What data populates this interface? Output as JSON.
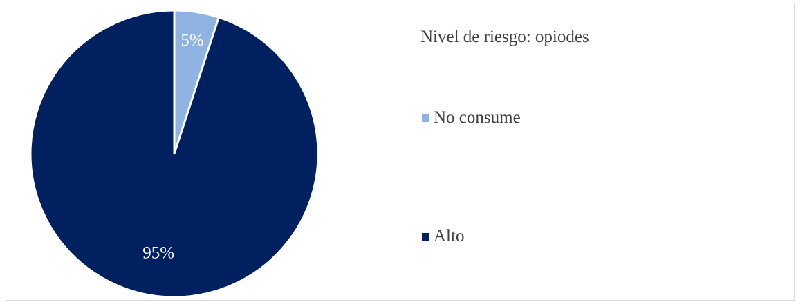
{
  "chart_data": {
    "type": "pie",
    "title": "Nivel de riesgo: opiodes",
    "categories": [
      "No consume",
      "Alto"
    ],
    "values": [
      5,
      95
    ],
    "labels": [
      "5%",
      "95%"
    ],
    "colors": [
      "#8FB4E3",
      "#002060"
    ],
    "label_colors": [
      "#ffffff",
      "#ffffff"
    ],
    "legend_position": "right",
    "start_angle": "top",
    "direction": "clockwise"
  }
}
